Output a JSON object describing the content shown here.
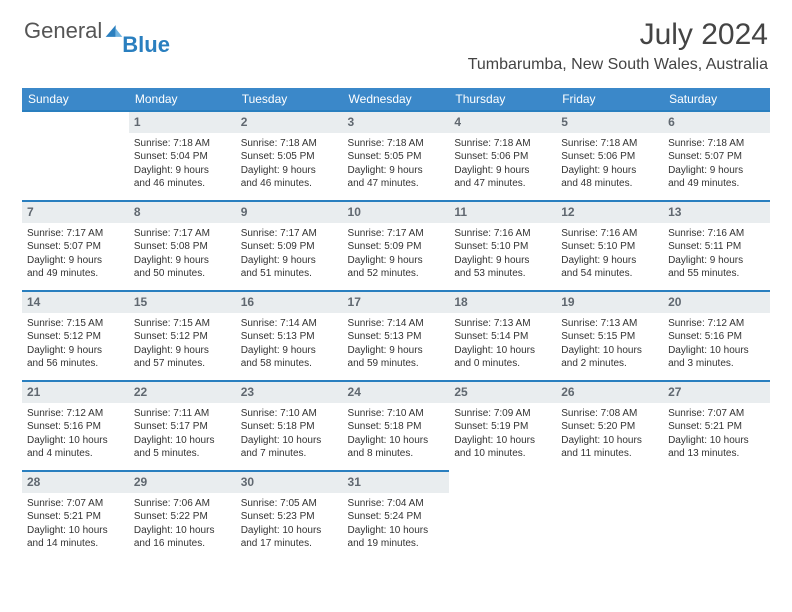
{
  "logo": {
    "text1": "General",
    "text2": "Blue"
  },
  "title": "July 2024",
  "location": "Tumbarumba, New South Wales, Australia",
  "colors": {
    "header_bg": "#3b88c9",
    "accent": "#2a7fbf",
    "daynum_bg": "#e9edef",
    "text": "#333333"
  },
  "day_headers": [
    "Sunday",
    "Monday",
    "Tuesday",
    "Wednesday",
    "Thursday",
    "Friday",
    "Saturday"
  ],
  "weeks": [
    [
      {
        "empty": true
      },
      {
        "day": "1",
        "sunrise": "Sunrise: 7:18 AM",
        "sunset": "Sunset: 5:04 PM",
        "daylight1": "Daylight: 9 hours",
        "daylight2": "and 46 minutes."
      },
      {
        "day": "2",
        "sunrise": "Sunrise: 7:18 AM",
        "sunset": "Sunset: 5:05 PM",
        "daylight1": "Daylight: 9 hours",
        "daylight2": "and 46 minutes."
      },
      {
        "day": "3",
        "sunrise": "Sunrise: 7:18 AM",
        "sunset": "Sunset: 5:05 PM",
        "daylight1": "Daylight: 9 hours",
        "daylight2": "and 47 minutes."
      },
      {
        "day": "4",
        "sunrise": "Sunrise: 7:18 AM",
        "sunset": "Sunset: 5:06 PM",
        "daylight1": "Daylight: 9 hours",
        "daylight2": "and 47 minutes."
      },
      {
        "day": "5",
        "sunrise": "Sunrise: 7:18 AM",
        "sunset": "Sunset: 5:06 PM",
        "daylight1": "Daylight: 9 hours",
        "daylight2": "and 48 minutes."
      },
      {
        "day": "6",
        "sunrise": "Sunrise: 7:18 AM",
        "sunset": "Sunset: 5:07 PM",
        "daylight1": "Daylight: 9 hours",
        "daylight2": "and 49 minutes."
      }
    ],
    [
      {
        "day": "7",
        "sunrise": "Sunrise: 7:17 AM",
        "sunset": "Sunset: 5:07 PM",
        "daylight1": "Daylight: 9 hours",
        "daylight2": "and 49 minutes."
      },
      {
        "day": "8",
        "sunrise": "Sunrise: 7:17 AM",
        "sunset": "Sunset: 5:08 PM",
        "daylight1": "Daylight: 9 hours",
        "daylight2": "and 50 minutes."
      },
      {
        "day": "9",
        "sunrise": "Sunrise: 7:17 AM",
        "sunset": "Sunset: 5:09 PM",
        "daylight1": "Daylight: 9 hours",
        "daylight2": "and 51 minutes."
      },
      {
        "day": "10",
        "sunrise": "Sunrise: 7:17 AM",
        "sunset": "Sunset: 5:09 PM",
        "daylight1": "Daylight: 9 hours",
        "daylight2": "and 52 minutes."
      },
      {
        "day": "11",
        "sunrise": "Sunrise: 7:16 AM",
        "sunset": "Sunset: 5:10 PM",
        "daylight1": "Daylight: 9 hours",
        "daylight2": "and 53 minutes."
      },
      {
        "day": "12",
        "sunrise": "Sunrise: 7:16 AM",
        "sunset": "Sunset: 5:10 PM",
        "daylight1": "Daylight: 9 hours",
        "daylight2": "and 54 minutes."
      },
      {
        "day": "13",
        "sunrise": "Sunrise: 7:16 AM",
        "sunset": "Sunset: 5:11 PM",
        "daylight1": "Daylight: 9 hours",
        "daylight2": "and 55 minutes."
      }
    ],
    [
      {
        "day": "14",
        "sunrise": "Sunrise: 7:15 AM",
        "sunset": "Sunset: 5:12 PM",
        "daylight1": "Daylight: 9 hours",
        "daylight2": "and 56 minutes."
      },
      {
        "day": "15",
        "sunrise": "Sunrise: 7:15 AM",
        "sunset": "Sunset: 5:12 PM",
        "daylight1": "Daylight: 9 hours",
        "daylight2": "and 57 minutes."
      },
      {
        "day": "16",
        "sunrise": "Sunrise: 7:14 AM",
        "sunset": "Sunset: 5:13 PM",
        "daylight1": "Daylight: 9 hours",
        "daylight2": "and 58 minutes."
      },
      {
        "day": "17",
        "sunrise": "Sunrise: 7:14 AM",
        "sunset": "Sunset: 5:13 PM",
        "daylight1": "Daylight: 9 hours",
        "daylight2": "and 59 minutes."
      },
      {
        "day": "18",
        "sunrise": "Sunrise: 7:13 AM",
        "sunset": "Sunset: 5:14 PM",
        "daylight1": "Daylight: 10 hours",
        "daylight2": "and 0 minutes."
      },
      {
        "day": "19",
        "sunrise": "Sunrise: 7:13 AM",
        "sunset": "Sunset: 5:15 PM",
        "daylight1": "Daylight: 10 hours",
        "daylight2": "and 2 minutes."
      },
      {
        "day": "20",
        "sunrise": "Sunrise: 7:12 AM",
        "sunset": "Sunset: 5:16 PM",
        "daylight1": "Daylight: 10 hours",
        "daylight2": "and 3 minutes."
      }
    ],
    [
      {
        "day": "21",
        "sunrise": "Sunrise: 7:12 AM",
        "sunset": "Sunset: 5:16 PM",
        "daylight1": "Daylight: 10 hours",
        "daylight2": "and 4 minutes."
      },
      {
        "day": "22",
        "sunrise": "Sunrise: 7:11 AM",
        "sunset": "Sunset: 5:17 PM",
        "daylight1": "Daylight: 10 hours",
        "daylight2": "and 5 minutes."
      },
      {
        "day": "23",
        "sunrise": "Sunrise: 7:10 AM",
        "sunset": "Sunset: 5:18 PM",
        "daylight1": "Daylight: 10 hours",
        "daylight2": "and 7 minutes."
      },
      {
        "day": "24",
        "sunrise": "Sunrise: 7:10 AM",
        "sunset": "Sunset: 5:18 PM",
        "daylight1": "Daylight: 10 hours",
        "daylight2": "and 8 minutes."
      },
      {
        "day": "25",
        "sunrise": "Sunrise: 7:09 AM",
        "sunset": "Sunset: 5:19 PM",
        "daylight1": "Daylight: 10 hours",
        "daylight2": "and 10 minutes."
      },
      {
        "day": "26",
        "sunrise": "Sunrise: 7:08 AM",
        "sunset": "Sunset: 5:20 PM",
        "daylight1": "Daylight: 10 hours",
        "daylight2": "and 11 minutes."
      },
      {
        "day": "27",
        "sunrise": "Sunrise: 7:07 AM",
        "sunset": "Sunset: 5:21 PM",
        "daylight1": "Daylight: 10 hours",
        "daylight2": "and 13 minutes."
      }
    ],
    [
      {
        "day": "28",
        "sunrise": "Sunrise: 7:07 AM",
        "sunset": "Sunset: 5:21 PM",
        "daylight1": "Daylight: 10 hours",
        "daylight2": "and 14 minutes."
      },
      {
        "day": "29",
        "sunrise": "Sunrise: 7:06 AM",
        "sunset": "Sunset: 5:22 PM",
        "daylight1": "Daylight: 10 hours",
        "daylight2": "and 16 minutes."
      },
      {
        "day": "30",
        "sunrise": "Sunrise: 7:05 AM",
        "sunset": "Sunset: 5:23 PM",
        "daylight1": "Daylight: 10 hours",
        "daylight2": "and 17 minutes."
      },
      {
        "day": "31",
        "sunrise": "Sunrise: 7:04 AM",
        "sunset": "Sunset: 5:24 PM",
        "daylight1": "Daylight: 10 hours",
        "daylight2": "and 19 minutes."
      },
      {
        "empty": true
      },
      {
        "empty": true
      },
      {
        "empty": true
      }
    ]
  ]
}
